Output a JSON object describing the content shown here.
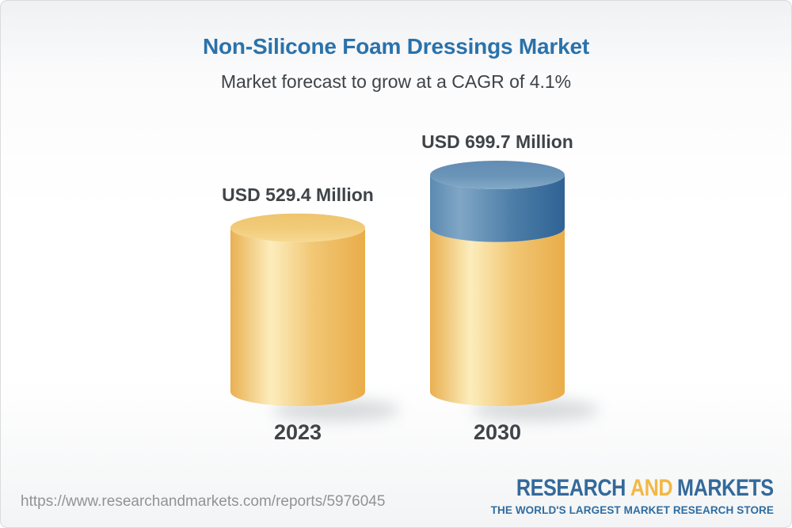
{
  "header": {
    "title": "Non-Silicone Foam Dressings Market",
    "subtitle": "Market forecast to grow at a CAGR of 4.1%"
  },
  "chart_data": {
    "type": "bar",
    "style": "3d-cylinder",
    "title": "Non-Silicone Foam Dressings Market",
    "subtitle": "Market forecast to grow at a CAGR of 4.1%",
    "cagr_percent": 4.1,
    "unit": "USD Million",
    "categories": [
      "2023",
      "2030"
    ],
    "values": [
      529.4,
      699.7
    ],
    "labels": [
      "USD 529.4 Million",
      "USD 699.7 Million"
    ],
    "ylim": [
      0,
      760
    ],
    "grid": false,
    "legend": false,
    "bars": [
      {
        "category": "2023",
        "value": 529.4,
        "label": "USD 529.4 Million",
        "segments": [
          {
            "name": "base",
            "color": "gold",
            "from": 0,
            "to": 529.4
          }
        ]
      },
      {
        "category": "2030",
        "value": 699.7,
        "label": "USD 699.7 Million",
        "segments": [
          {
            "name": "base",
            "color": "gold",
            "from": 0,
            "to": 529.4
          },
          {
            "name": "growth",
            "color": "blue",
            "from": 529.4,
            "to": 699.7
          }
        ]
      }
    ],
    "colors": {
      "gold_body": [
        [
          "0%",
          "#E9B052"
        ],
        [
          "30%",
          "#FCEDBC"
        ],
        [
          "62%",
          "#F1C674"
        ],
        [
          "100%",
          "#E9AD49"
        ]
      ],
      "blue_body": [
        [
          "0%",
          "#5C8AB2"
        ],
        [
          "22%",
          "#80A6C5"
        ],
        [
          "62%",
          "#4C7DA8"
        ],
        [
          "100%",
          "#2F6394"
        ]
      ],
      "gold_top": [
        [
          "0%",
          "#EEC46D"
        ],
        [
          "55%",
          "#F2CC7B"
        ],
        [
          "100%",
          "#F6D992"
        ]
      ],
      "blue_top": [
        [
          "0%",
          "#628CB2"
        ],
        [
          "55%",
          "#6B94B9"
        ],
        [
          "100%",
          "#83A9C6"
        ]
      ],
      "shadow": "#9fa6aa",
      "title_blue": "#2a72ab",
      "label_gray": "#3f4448"
    }
  },
  "footer": {
    "url": "https://www.researchandmarkets.com/reports/5976045",
    "logo": {
      "research": "RESEARCH",
      "and": "AND",
      "markets": "MARKETS",
      "tagline": "THE WORLD'S LARGEST MARKET RESEARCH STORE"
    }
  }
}
